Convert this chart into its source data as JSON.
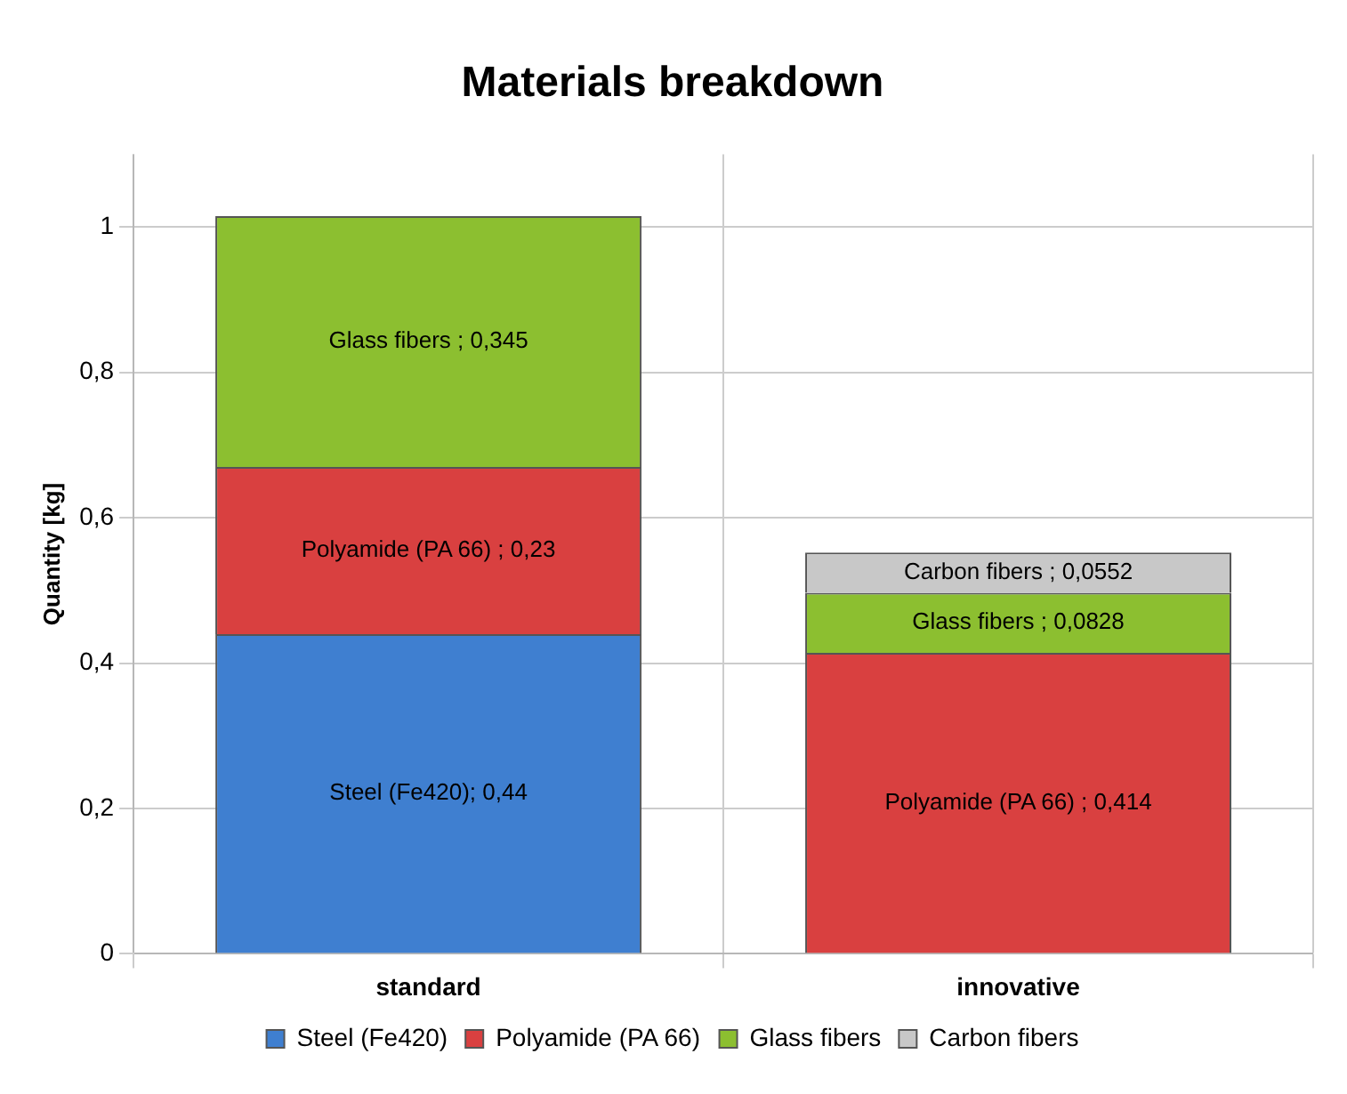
{
  "chart_data": {
    "type": "bar",
    "title": "Materials breakdown",
    "ylabel": "Quantity [kg]",
    "categories": [
      "standard",
      "innovative"
    ],
    "stacked": true,
    "grid": true,
    "legend": "bottom",
    "ylim": [
      0,
      1.1
    ],
    "yticks": [
      0,
      {
        "value": 0.2,
        "label": "0,2"
      },
      {
        "value": 0.4,
        "label": "0,4"
      },
      {
        "value": 0.6,
        "label": "0,6"
      },
      {
        "value": 0.8,
        "label": "0,8"
      },
      1
    ],
    "series": [
      {
        "name": "Steel (Fe420)",
        "color": "#3f7fd0",
        "values": [
          0.44,
          null
        ],
        "value_labels": [
          "Steel (Fe420); 0,44",
          null
        ]
      },
      {
        "name": "Polyamide (PA 66)",
        "color": "#d94040",
        "values": [
          0.23,
          0.414
        ],
        "value_labels": [
          "Polyamide (PA 66) ; 0,23",
          "Polyamide (PA 66) ; 0,414"
        ]
      },
      {
        "name": "Glass fibers",
        "color": "#8cbf30",
        "values": [
          0.345,
          0.0828
        ],
        "value_labels": [
          "Glass fibers ; 0,345",
          "Glass fibers ; 0,0828"
        ]
      },
      {
        "name": "Carbon fibers",
        "color": "#c8c8c8",
        "values": [
          null,
          0.0552
        ],
        "value_labels": [
          null,
          "Carbon fibers ; 0,0552"
        ]
      }
    ]
  }
}
